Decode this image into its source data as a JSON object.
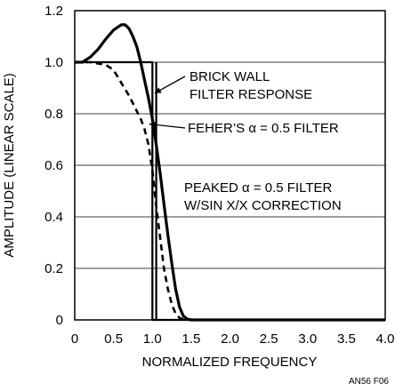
{
  "chart_data": {
    "type": "line",
    "xlabel": "NORMALIZED FREQUENCY",
    "ylabel": "AMPLITUDE (LINEAR SCALE)",
    "xlim": [
      0,
      4.0
    ],
    "ylim": [
      0,
      1.2
    ],
    "x_ticks": [
      {
        "value": 0,
        "label": "0"
      },
      {
        "value": 0.5,
        "label": "0.5"
      },
      {
        "value": 1.0,
        "label": "1.0"
      },
      {
        "value": 1.5,
        "label": "1.5"
      },
      {
        "value": 2.0,
        "label": "2.0"
      },
      {
        "value": 2.5,
        "label": "2.5"
      },
      {
        "value": 3.0,
        "label": "3.0"
      },
      {
        "value": 3.5,
        "label": "3.5"
      },
      {
        "value": 4.0,
        "label": "4.0"
      }
    ],
    "y_ticks": [
      {
        "value": 0,
        "label": "0"
      },
      {
        "value": 0.2,
        "label": "0.2"
      },
      {
        "value": 0.4,
        "label": "0.4"
      },
      {
        "value": 0.6,
        "label": "0.6"
      },
      {
        "value": 0.8,
        "label": "0.8"
      },
      {
        "value": 1.0,
        "label": "1.0"
      },
      {
        "value": 1.2,
        "label": "1.2"
      }
    ],
    "grid": true,
    "series": [
      {
        "style": "solid-thin",
        "x": [
          0,
          1.0,
          1.0,
          4.0
        ],
        "y": [
          1.0,
          1.0,
          0,
          0
        ]
      },
      {
        "style": "dashed",
        "x": [
          0,
          0.2,
          0.4,
          0.5,
          0.6,
          0.7,
          0.8,
          0.85,
          0.9,
          0.95,
          1.0,
          1.05,
          1.1,
          1.15,
          1.2,
          1.25,
          1.3,
          1.35,
          1.4,
          1.5,
          4.0
        ],
        "y": [
          1.0,
          1.0,
          0.99,
          0.97,
          0.92,
          0.87,
          0.81,
          0.78,
          0.74,
          0.68,
          0.58,
          0.44,
          0.32,
          0.2,
          0.12,
          0.06,
          0.025,
          0.008,
          0.002,
          0,
          0
        ]
      },
      {
        "style": "solid-thick",
        "x": [
          0,
          0.1,
          0.2,
          0.3,
          0.4,
          0.5,
          0.6,
          0.65,
          0.7,
          0.75,
          0.8,
          0.85,
          0.9,
          0.95,
          1.0,
          1.05,
          1.1,
          1.15,
          1.2,
          1.25,
          1.3,
          1.35,
          1.4,
          1.45,
          1.5,
          4.0
        ],
        "y": [
          1.0,
          1.0,
          1.02,
          1.05,
          1.09,
          1.125,
          1.145,
          1.145,
          1.13,
          1.1,
          1.06,
          1.0,
          0.93,
          0.86,
          0.78,
          0.68,
          0.57,
          0.45,
          0.33,
          0.22,
          0.12,
          0.05,
          0.015,
          0.003,
          0,
          0
        ]
      }
    ],
    "annotations": [
      {
        "lines": [
          "BRICK WALL",
          "FILTER RESPONSE"
        ]
      },
      {
        "lines": [
          "FEHER’S α = 0.5 FILTER"
        ]
      },
      {
        "lines": [
          "PEAKED α = 0.5 FILTER",
          "W/SIN X/X CORRECTION"
        ]
      }
    ]
  },
  "figure_id": "AN56 F06"
}
